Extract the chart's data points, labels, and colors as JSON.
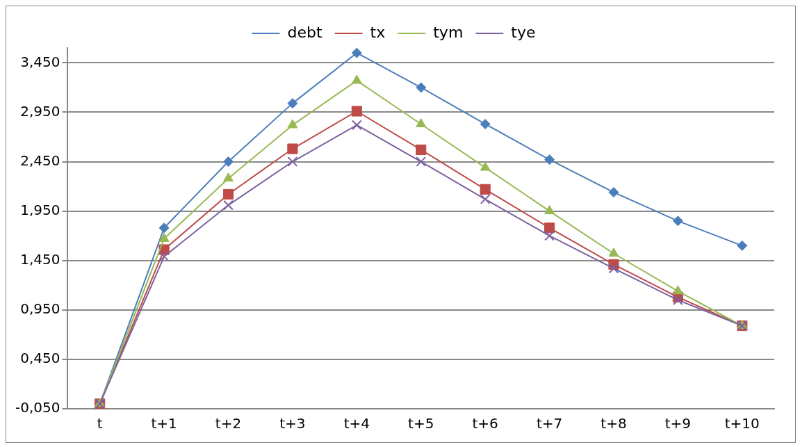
{
  "chart_data": {
    "type": "line",
    "categories": [
      "t",
      "t+1",
      "t+2",
      "t+3",
      "t+4",
      "t+5",
      "t+6",
      "t+7",
      "t+8",
      "t+9",
      "t+10"
    ],
    "series": [
      {
        "name": "debt",
        "color": "#4a7ebb",
        "marker": "diamond",
        "values": [
          0,
          1.78,
          2.45,
          3.04,
          3.55,
          3.2,
          2.83,
          2.47,
          2.14,
          1.85,
          1.6
        ]
      },
      {
        "name": "tx",
        "color": "#be4b48",
        "marker": "square",
        "values": [
          0,
          1.56,
          2.12,
          2.58,
          2.96,
          2.57,
          2.17,
          1.78,
          1.41,
          1.08,
          0.79
        ]
      },
      {
        "name": "tym",
        "color": "#98b954",
        "marker": "triangle",
        "values": [
          0,
          1.67,
          2.28,
          2.82,
          3.27,
          2.83,
          2.39,
          1.95,
          1.52,
          1.14,
          0.79
        ]
      },
      {
        "name": "tye",
        "color": "#7d60a0",
        "marker": "cross",
        "values": [
          0,
          1.49,
          2.01,
          2.45,
          2.82,
          2.45,
          2.07,
          1.7,
          1.37,
          1.05,
          0.79
        ]
      }
    ],
    "ylim": [
      -0.05,
      3.6
    ],
    "yticks": [
      {
        "value": -0.05,
        "label": "-0,050"
      },
      {
        "value": 0.45,
        "label": "0,450"
      },
      {
        "value": 0.95,
        "label": "0,950"
      },
      {
        "value": 1.45,
        "label": "1,450"
      },
      {
        "value": 1.95,
        "label": "1,950"
      },
      {
        "value": 2.45,
        "label": "2,450"
      },
      {
        "value": 2.95,
        "label": "2,950"
      },
      {
        "value": 3.45,
        "label": "3,450"
      }
    ],
    "grid": "y",
    "legend": "top",
    "line_style": "solid"
  }
}
